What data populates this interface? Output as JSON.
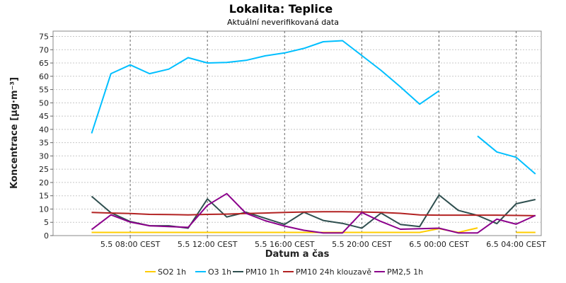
{
  "chart_data": {
    "type": "line",
    "title": "Lokalita: Teplice",
    "subtitle": "Aktuální neverifikovaná data",
    "xlabel": "Datum a čas",
    "ylabel": "Koncentrace [µg·m⁻³]",
    "ylim": [
      0,
      77
    ],
    "yticks": [
      0,
      5,
      10,
      15,
      20,
      25,
      30,
      35,
      40,
      45,
      50,
      55,
      60,
      65,
      70,
      75
    ],
    "xticks": [
      {
        "x": 8,
        "label": "5.5 08:00 CEST"
      },
      {
        "x": 12,
        "label": "5.5 12:00 CEST"
      },
      {
        "x": 16,
        "label": "5.5 16:00 CEST"
      },
      {
        "x": 20,
        "label": "5.5 20:00 CEST"
      },
      {
        "x": 24,
        "label": "6.5 00:00 CEST"
      },
      {
        "x": 28,
        "label": "6.5 04:00 CEST"
      }
    ],
    "xlim": [
      4,
      29.3
    ],
    "grid": true,
    "legend_position": "bottom",
    "series": [
      {
        "name": "SO2 1h",
        "color": "#ffcc00",
        "points": [
          [
            6,
            1.2
          ],
          [
            7,
            1.2
          ],
          [
            8,
            1.2
          ],
          [
            9,
            1.2
          ],
          [
            10,
            1.2
          ],
          [
            11,
            1.2
          ],
          [
            12,
            1.2
          ],
          [
            13,
            1.2
          ],
          [
            14,
            1.2
          ],
          [
            15,
            1.2
          ],
          [
            16,
            1.2
          ],
          [
            17,
            1.2
          ],
          [
            18,
            1.2
          ],
          [
            19,
            1.2
          ],
          [
            20,
            1.2
          ],
          [
            21,
            1.2
          ],
          [
            22,
            1.2
          ],
          [
            23,
            1.2
          ],
          [
            24,
            2.6
          ],
          [
            25,
            1.2
          ],
          [
            26,
            2.9
          ],
          null,
          [
            28,
            1.2
          ],
          [
            29,
            1.2
          ]
        ]
      },
      {
        "name": "O3 1h",
        "color": "#00bfff",
        "points": [
          [
            6,
            38.5
          ],
          [
            7,
            61
          ],
          [
            8,
            64.3
          ],
          [
            9,
            61
          ],
          [
            10,
            62.7
          ],
          [
            11,
            67
          ],
          [
            12,
            65
          ],
          [
            13,
            65.2
          ],
          [
            14,
            66
          ],
          [
            15,
            67.7
          ],
          [
            16,
            68.8
          ],
          [
            17,
            70.5
          ],
          [
            18,
            73
          ],
          [
            19,
            73.4
          ],
          [
            20,
            67.8
          ],
          [
            21,
            62.2
          ],
          [
            22,
            56
          ],
          [
            23,
            49.5
          ],
          [
            24,
            54.5
          ],
          null,
          [
            26,
            37.5
          ],
          [
            27,
            31.5
          ],
          [
            28,
            29.5
          ],
          [
            29,
            23.2
          ]
        ]
      },
      {
        "name": "PM10 1h",
        "color": "#2f4f4f",
        "points": [
          [
            6,
            14.8
          ],
          [
            7,
            8.6
          ],
          [
            8,
            5.3
          ],
          [
            9,
            3.7
          ],
          [
            10,
            3.7
          ],
          [
            11,
            2.8
          ],
          [
            12,
            13.8
          ],
          [
            13,
            7
          ],
          [
            14,
            8.8
          ],
          [
            15,
            6.5
          ],
          [
            16,
            4.2
          ],
          [
            17,
            8.8
          ],
          [
            18,
            5.7
          ],
          [
            19,
            4.6
          ],
          [
            20,
            2.8
          ],
          [
            21,
            8.5
          ],
          [
            22,
            4.2
          ],
          [
            23,
            3.4
          ],
          [
            24,
            15.3
          ],
          [
            25,
            9.5
          ],
          [
            26,
            7.6
          ],
          [
            27,
            4.5
          ],
          [
            28,
            12
          ],
          [
            29,
            13.6
          ]
        ]
      },
      {
        "name": "PM10 24h klouzavě",
        "color": "#b22222",
        "points": [
          [
            6,
            8.7
          ],
          [
            7,
            8.5
          ],
          [
            8,
            8.3
          ],
          [
            9,
            8
          ],
          [
            10,
            7.9
          ],
          [
            11,
            7.8
          ],
          [
            12,
            8
          ],
          [
            13,
            8.1
          ],
          [
            14,
            8.3
          ],
          [
            15,
            8.5
          ],
          [
            16,
            8.7
          ],
          [
            17,
            8.9
          ],
          [
            18,
            9
          ],
          [
            19,
            9
          ],
          [
            20,
            8.9
          ],
          [
            21,
            8.7
          ],
          [
            22,
            8.4
          ],
          [
            23,
            7.8
          ],
          [
            24,
            7.7
          ],
          [
            25,
            7.7
          ],
          [
            26,
            7.7
          ],
          [
            27,
            7.7
          ],
          [
            28,
            7.6
          ],
          [
            29,
            7.5
          ]
        ]
      },
      {
        "name": "PM2,5 1h",
        "color": "#8b008b",
        "points": [
          [
            6,
            2.3
          ],
          [
            7,
            7.8
          ],
          [
            8,
            5.1
          ],
          [
            9,
            3.7
          ],
          [
            10,
            3.4
          ],
          [
            11,
            3.1
          ],
          [
            12,
            11.4
          ],
          [
            13,
            15.8
          ],
          [
            14,
            8.4
          ],
          [
            15,
            5.6
          ],
          [
            16,
            3.6
          ],
          [
            17,
            2
          ],
          [
            18,
            1
          ],
          [
            19,
            1
          ],
          [
            20,
            8.7
          ],
          [
            21,
            5.3
          ],
          [
            22,
            2.4
          ],
          [
            23,
            2.6
          ],
          [
            24,
            2.8
          ],
          [
            25,
            1
          ],
          [
            26,
            1
          ],
          [
            27,
            6.2
          ],
          [
            28,
            4.3
          ],
          [
            29,
            7.6
          ]
        ]
      }
    ]
  }
}
